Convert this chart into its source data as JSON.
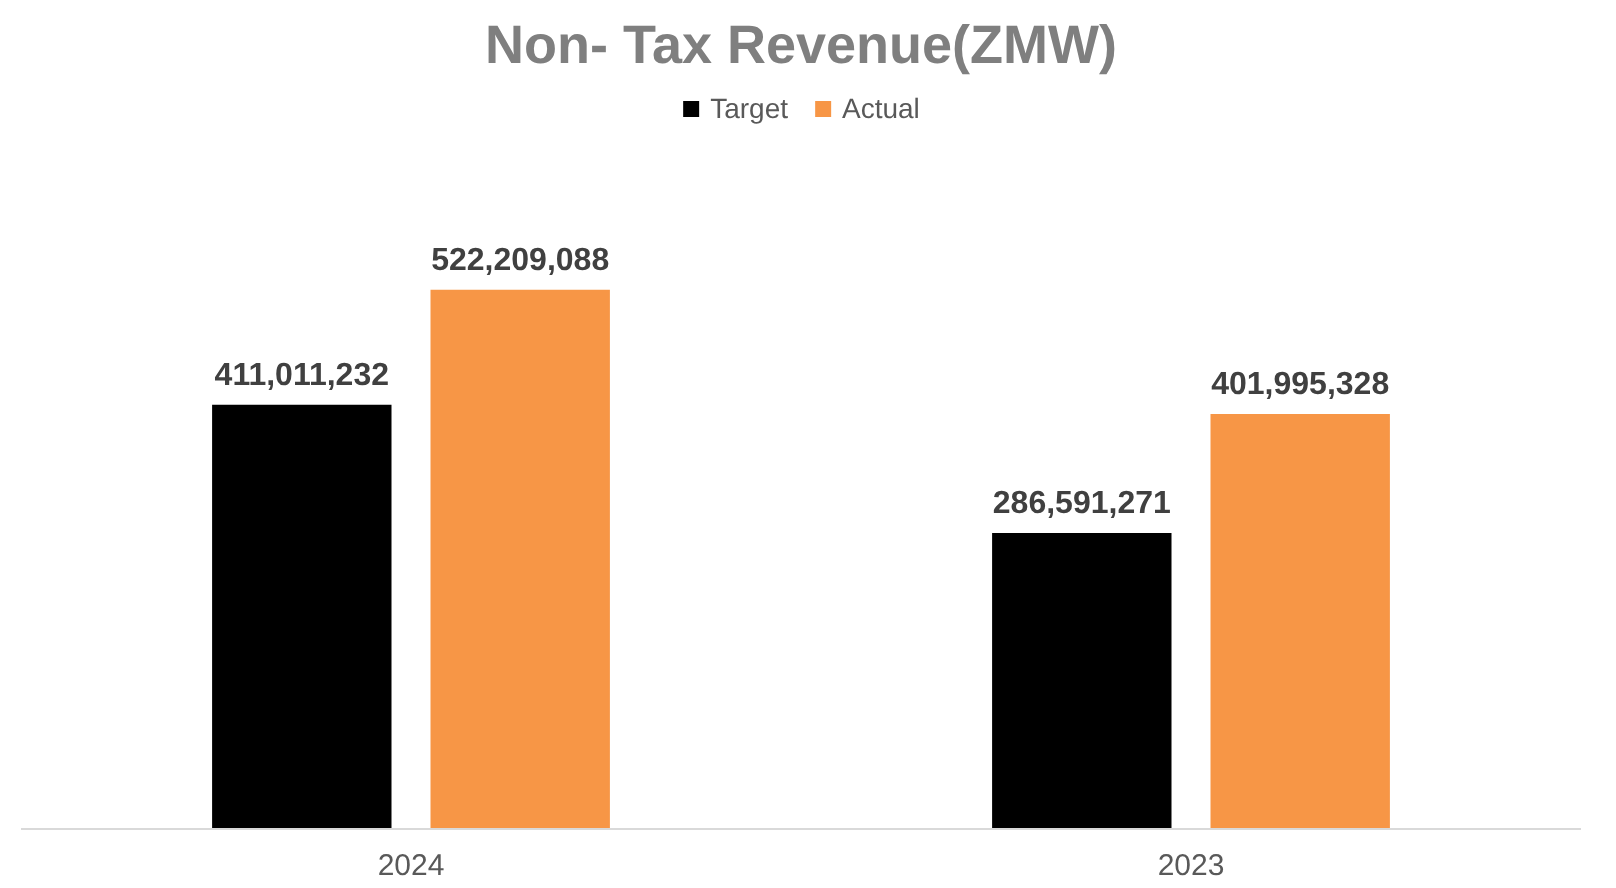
{
  "chart_data": {
    "type": "bar",
    "title": "Non- Tax Revenue(ZMW)",
    "categories": [
      "2024",
      "2023"
    ],
    "series": [
      {
        "name": "Target",
        "color": "#000000",
        "values": [
          411011232,
          286591271
        ],
        "value_labels": [
          "411,011,232",
          "286,591,271"
        ]
      },
      {
        "name": "Actual",
        "color": "#f79646",
        "values": [
          522209088,
          401995328
        ],
        "value_labels": [
          "522,209,088",
          "401,995,328"
        ]
      }
    ],
    "legend": "top",
    "grid": false
  }
}
